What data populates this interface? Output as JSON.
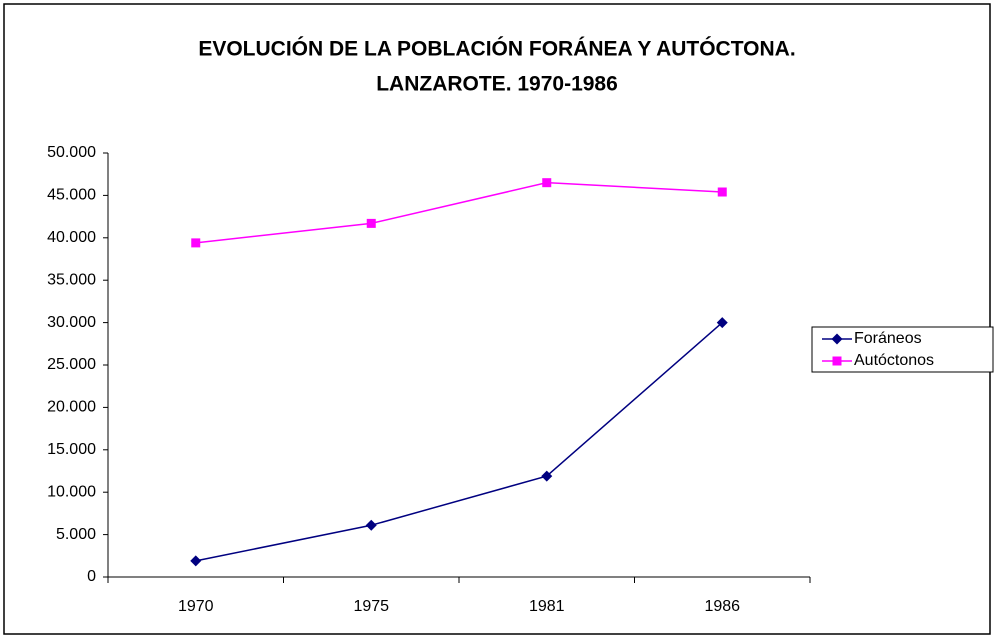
{
  "chart_data": {
    "type": "line",
    "title": [
      "EVOLUCIÓN DE LA POBLACIÓN FORÁNEA Y AUTÓCTONA.",
      "LANZAROTE. 1970-1986"
    ],
    "categories": [
      "1970",
      "1975",
      "1981",
      "1986"
    ],
    "series": [
      {
        "name": "Foráneos",
        "color": "#000080",
        "marker": "diamond",
        "values": [
          1900,
          6100,
          11900,
          30000
        ]
      },
      {
        "name": "Autóctonos",
        "color": "#ff00ff",
        "marker": "square",
        "values": [
          39400,
          41700,
          46500,
          45400
        ]
      }
    ],
    "ylim": [
      0,
      50000
    ],
    "yticks": [
      0,
      {
        "value": 5000,
        "label": "5.000"
      },
      {
        "value": 10000,
        "label": "10.000"
      },
      {
        "value": 15000,
        "label": "15.000"
      },
      {
        "value": 20000,
        "label": "20.000"
      },
      {
        "value": 25000,
        "label": "25.000"
      },
      {
        "value": 30000,
        "label": "30.000"
      },
      {
        "value": 35000,
        "label": "35.000"
      },
      {
        "value": 40000,
        "label": "40.000"
      },
      {
        "value": 45000,
        "label": "45.000"
      },
      {
        "value": 50000,
        "label": "50.000"
      }
    ],
    "grid": false,
    "legend": "right"
  }
}
